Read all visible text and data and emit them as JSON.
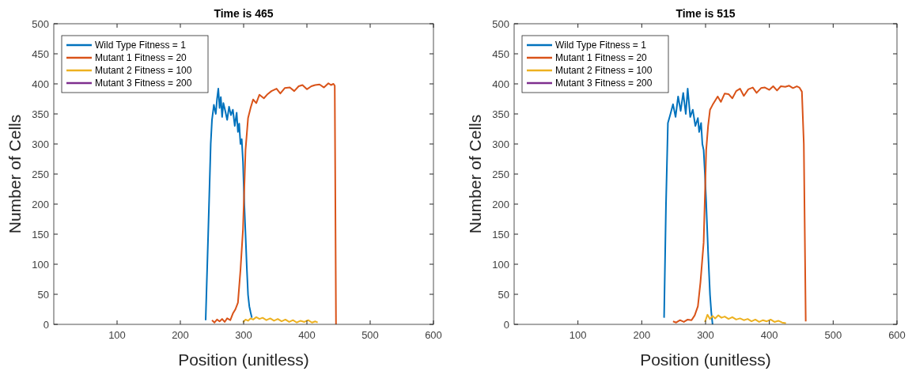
{
  "chart_data": [
    {
      "type": "line",
      "title": "Time is 465",
      "xlabel": "Position (unitless)",
      "ylabel": "Number of Cells",
      "xlim": [
        0,
        600
      ],
      "ylim": [
        0,
        500
      ],
      "xticks": [
        100,
        200,
        300,
        400,
        500,
        600
      ],
      "yticks": [
        0,
        50,
        100,
        150,
        200,
        250,
        300,
        350,
        400,
        450,
        500
      ],
      "legend": "top left",
      "grid": false,
      "series": [
        {
          "name": "Wild Type Fitness = 1",
          "color": "#0072bd",
          "x": [
            240,
            244,
            248,
            250,
            253,
            256,
            258,
            260,
            262,
            264,
            266,
            268,
            271,
            274,
            277,
            280,
            283,
            286,
            289,
            291,
            293,
            295,
            297,
            299,
            301,
            303,
            305,
            307,
            309,
            311,
            313
          ],
          "values": [
            7,
            150,
            300,
            340,
            365,
            350,
            375,
            392,
            360,
            378,
            345,
            368,
            355,
            340,
            362,
            348,
            357,
            330,
            352,
            320,
            334,
            300,
            308,
            270,
            202,
            150,
            95,
            49,
            30,
            20,
            11
          ]
        },
        {
          "name": "Mutant 1 Fitness = 20",
          "color": "#d95319",
          "x": [
            250,
            254,
            258,
            262,
            266,
            270,
            274,
            279,
            283,
            287,
            291,
            295,
            299,
            303,
            307,
            311,
            315,
            320,
            325,
            332,
            338,
            344,
            352,
            358,
            365,
            373,
            380,
            387,
            393,
            400,
            407,
            413,
            420,
            427,
            434,
            438,
            442,
            444,
            446
          ],
          "values": [
            7,
            3,
            8,
            5,
            9,
            4,
            10,
            7,
            18,
            25,
            36,
            90,
            158,
            290,
            343,
            360,
            374,
            368,
            382,
            376,
            383,
            388,
            392,
            384,
            393,
            394,
            388,
            396,
            398,
            391,
            396,
            398,
            399,
            394,
            401,
            398,
            400,
            397,
            0
          ]
        },
        {
          "name": "Mutant 2 Fitness = 100",
          "color": "#edb120",
          "x": [
            299,
            303,
            307,
            311,
            315,
            320,
            325,
            330,
            336,
            342,
            348,
            354,
            360,
            366,
            372,
            378,
            384,
            390,
            396,
            402,
            408,
            413,
            417
          ],
          "values": [
            3,
            8,
            6,
            10,
            8,
            12,
            9,
            11,
            7,
            10,
            6,
            9,
            5,
            8,
            4,
            7,
            3,
            6,
            4,
            7,
            3,
            5,
            3
          ]
        },
        {
          "name": "Mutant 3 Fitness = 200",
          "color": "#7e2f8e"
        }
      ]
    },
    {
      "type": "line",
      "title": "Time is 515",
      "xlabel": "Position (unitless)",
      "ylabel": "Number of Cells",
      "xlim": [
        0,
        600
      ],
      "ylim": [
        0,
        500
      ],
      "xticks": [
        100,
        200,
        300,
        400,
        500,
        600
      ],
      "yticks": [
        0,
        50,
        100,
        150,
        200,
        250,
        300,
        350,
        400,
        450,
        500
      ],
      "legend": "top left",
      "grid": false,
      "series": [
        {
          "name": "Wild Type Fitness = 1",
          "color": "#0072bd",
          "x": [
            235,
            238,
            241,
            245,
            249,
            253,
            257,
            261,
            265,
            269,
            272,
            276,
            280,
            284,
            288,
            290,
            293,
            295,
            297,
            299,
            301,
            304,
            307,
            309,
            311
          ],
          "values": [
            11,
            200,
            335,
            350,
            366,
            345,
            379,
            355,
            385,
            350,
            392,
            345,
            357,
            330,
            343,
            320,
            335,
            300,
            290,
            250,
            202,
            120,
            49,
            20,
            0
          ]
        },
        {
          "name": "Mutant 1 Fitness = 20",
          "color": "#d95319",
          "x": [
            249,
            254,
            260,
            266,
            272,
            278,
            283,
            288,
            292,
            297,
            301,
            304,
            307,
            311,
            315,
            319,
            324,
            330,
            336,
            342,
            348,
            354,
            360,
            367,
            374,
            380,
            387,
            393,
            400,
            406,
            412,
            418,
            425,
            431,
            437,
            443,
            447,
            451,
            454,
            457
          ],
          "values": [
            5,
            3,
            7,
            4,
            8,
            7,
            15,
            30,
            70,
            136,
            290,
            330,
            357,
            365,
            372,
            379,
            370,
            384,
            383,
            376,
            388,
            392,
            380,
            391,
            394,
            385,
            393,
            394,
            390,
            396,
            389,
            396,
            395,
            397,
            393,
            396,
            394,
            387,
            300,
            5
          ]
        },
        {
          "name": "Mutant 2 Fitness = 100",
          "color": "#edb120",
          "x": [
            299,
            303,
            307,
            311,
            315,
            320,
            325,
            330,
            336,
            342,
            348,
            354,
            360,
            366,
            372,
            378,
            384,
            390,
            396,
            402,
            408,
            414,
            420,
            426
          ],
          "values": [
            4,
            16,
            9,
            14,
            10,
            15,
            11,
            13,
            9,
            12,
            8,
            10,
            7,
            9,
            5,
            8,
            4,
            7,
            5,
            8,
            4,
            6,
            3,
            2
          ]
        },
        {
          "name": "Mutant 3 Fitness = 200",
          "color": "#7e2f8e"
        }
      ]
    }
  ]
}
